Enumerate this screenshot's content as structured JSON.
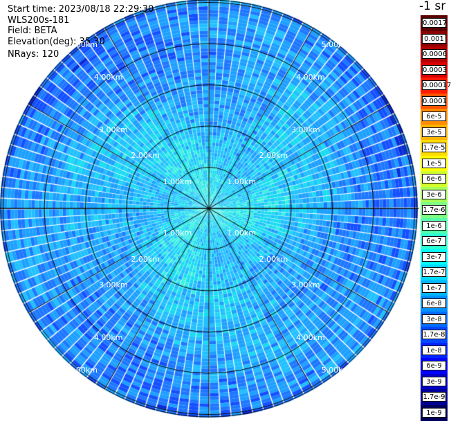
{
  "header": {
    "start_time": "Start time: 2023/08/18 22:29:30",
    "instrument": "WLS200s-181",
    "field": "Field: BETA",
    "elevation": "Elevation(deg): 35.30",
    "nrays": "NRays: 120"
  },
  "ppi": {
    "ring_labels": [
      "1.00km",
      "2.00km",
      "3.00km",
      "4.00km",
      "5.00km"
    ],
    "ring_count": 5,
    "ray_count": 120,
    "spoke_count": 12,
    "range_gate_count": 60,
    "line_color": "#000000"
  },
  "colorbar": {
    "unit_label": "-1 sr",
    "ticks": [
      "0.0017",
      "0.001",
      "0.0006",
      "0.0003",
      "0.00017",
      "0.0001",
      "6e-5",
      "3e-5",
      "1.7e-5",
      "1e-5",
      "6e-6",
      "3e-6",
      "1.7e-6",
      "1e-6",
      "6e-7",
      "3e-7",
      "1.7e-7",
      "1e-7",
      "6e-8",
      "3e-8",
      "1.7e-8",
      "1e-8",
      "6e-9",
      "3e-9",
      "1.7e-9",
      "1e-9"
    ],
    "colors": [
      "#5a0000",
      "#8c0000",
      "#b40000",
      "#dc0000",
      "#ff1a00",
      "#ff5500",
      "#ff8c00",
      "#ffb400",
      "#ffdc00",
      "#ffff00",
      "#d4ff2a",
      "#a6ff59",
      "#7dff82",
      "#55ffaa",
      "#2dffd2",
      "#00ffff",
      "#00d8ff",
      "#00b4ff",
      "#0090ff",
      "#006cff",
      "#0048ff",
      "#0024ff",
      "#0000ff",
      "#0000c8",
      "#000096",
      "#00005a"
    ]
  }
}
